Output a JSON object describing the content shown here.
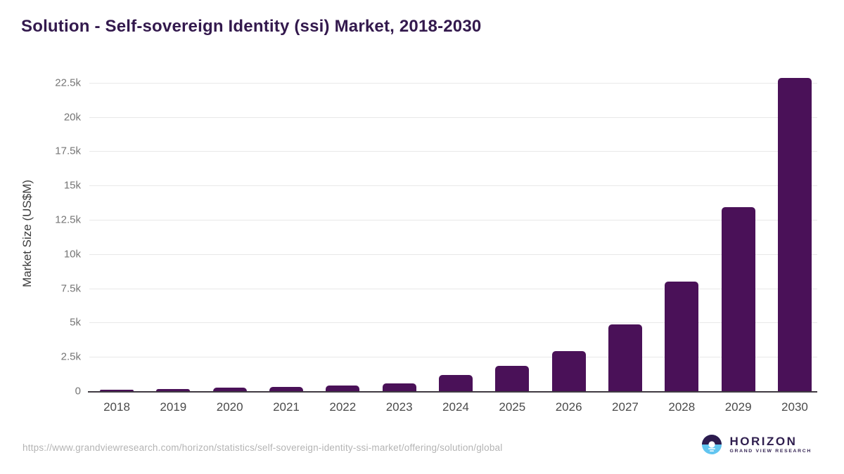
{
  "header": {
    "title": "Solution - Self-sovereign Identity (ssi) Market, 2018-2030"
  },
  "chart_data": {
    "type": "bar",
    "title": "Solution - Self-sovereign Identity (ssi) Market, 2018-2030",
    "categories": [
      "2018",
      "2019",
      "2020",
      "2021",
      "2022",
      "2023",
      "2024",
      "2025",
      "2026",
      "2027",
      "2028",
      "2029",
      "2030"
    ],
    "values": [
      120,
      180,
      250,
      330,
      400,
      560,
      1180,
      1820,
      2920,
      4870,
      8000,
      13400,
      22860
    ],
    "xlabel": "",
    "ylabel": "Market Size (US$M)",
    "ylim": [
      0,
      23000
    ],
    "yticks": [
      {
        "label": "0",
        "value": 0
      },
      {
        "label": "2.5k",
        "value": 2500
      },
      {
        "label": "5k",
        "value": 5000
      },
      {
        "label": "7.5k",
        "value": 7500
      },
      {
        "label": "10k",
        "value": 10000
      },
      {
        "label": "12.5k",
        "value": 12500
      },
      {
        "label": "15k",
        "value": 15000
      },
      {
        "label": "17.5k",
        "value": 17500
      },
      {
        "label": "20k",
        "value": 20000
      },
      {
        "label": "22.5k",
        "value": 22500
      }
    ],
    "grid": "horizontal",
    "legend": "none",
    "bar_color": "#4a1158"
  },
  "footer": {
    "source_url": "https://www.grandviewresearch.com/horizon/statistics/self-sovereign-identity-ssi-market/offering/solution/global",
    "logo": {
      "brand": "HORIZON",
      "subbrand": "GRAND VIEW RESEARCH",
      "mark_top_color": "#2d1b4e",
      "mark_bottom_color": "#62c5f0"
    }
  }
}
